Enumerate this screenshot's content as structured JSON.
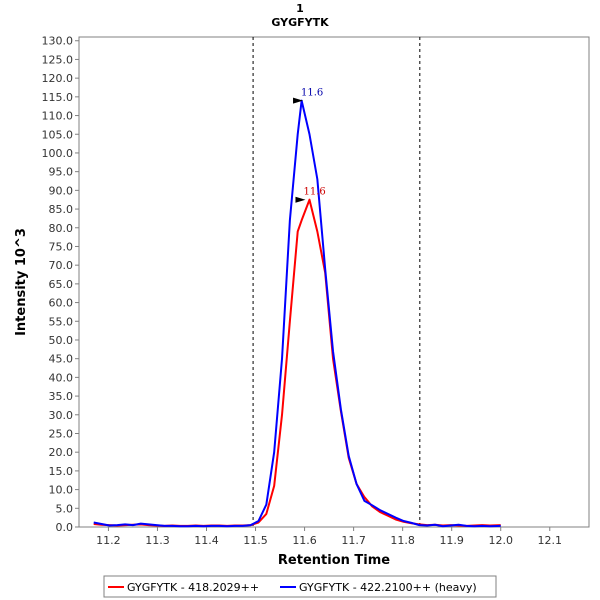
{
  "chart_data": {
    "type": "line",
    "title": "1",
    "subtitle": "GYGFYTK",
    "xlabel": "Retention Time",
    "ylabel": "Intensity 10^3",
    "xlim": [
      11.14,
      12.18
    ],
    "ylim": [
      0,
      131
    ],
    "x_ticks": [
      "11.2",
      "11.3",
      "11.4",
      "11.5",
      "11.6",
      "11.7",
      "11.8",
      "11.9",
      "12.0",
      "12.1"
    ],
    "y_ticks": [
      "0.0",
      "5.0",
      "10.0",
      "15.0",
      "20.0",
      "25.0",
      "30.0",
      "35.0",
      "40.0",
      "45.0",
      "50.0",
      "55.0",
      "60.0",
      "65.0",
      "70.0",
      "75.0",
      "80.0",
      "85.0",
      "90.0",
      "95.0",
      "100.0",
      "105.0",
      "110.0",
      "115.0",
      "120.0",
      "125.0",
      "130.0"
    ],
    "grid": false,
    "legend_position": "bottom",
    "boundaries": [
      11.495,
      11.835
    ],
    "series": [
      {
        "name": "GYGFYTK - 418.2029++",
        "color": "#ff0000",
        "x": [
          11.17,
          11.186,
          11.202,
          11.218,
          11.234,
          11.25,
          11.266,
          11.282,
          11.298,
          11.314,
          11.33,
          11.346,
          11.362,
          11.378,
          11.394,
          11.41,
          11.426,
          11.442,
          11.458,
          11.474,
          11.49,
          11.506,
          11.522,
          11.538,
          11.554,
          11.57,
          11.586,
          11.594,
          11.61,
          11.626,
          11.642,
          11.658,
          11.674,
          11.69,
          11.706,
          11.722,
          11.738,
          11.754,
          11.77,
          11.786,
          11.802,
          11.818,
          11.834,
          11.85,
          11.866,
          11.882,
          11.898,
          11.914,
          11.93,
          11.946,
          11.962,
          11.978,
          12.0
        ],
        "values": [
          0.8,
          0.6,
          0.5,
          0.4,
          0.5,
          0.6,
          0.7,
          0.5,
          0.4,
          0.3,
          0.4,
          0.3,
          0.3,
          0.4,
          0.3,
          0.4,
          0.4,
          0.3,
          0.4,
          0.4,
          0.5,
          1.2,
          3.5,
          11,
          30,
          55,
          79,
          82,
          87.5,
          79,
          68,
          45,
          31,
          18.5,
          11.5,
          8,
          5.5,
          4,
          3,
          2,
          1.4,
          1,
          0.7,
          0.5,
          0.6,
          0.4,
          0.5,
          0.4,
          0.3,
          0.4,
          0.5,
          0.4,
          0.5
        ]
      },
      {
        "name": "GYGFYTK - 422.2100++ (heavy)",
        "color": "#0000ff",
        "x": [
          11.17,
          11.186,
          11.202,
          11.218,
          11.234,
          11.25,
          11.266,
          11.282,
          11.298,
          11.314,
          11.33,
          11.346,
          11.362,
          11.378,
          11.394,
          11.41,
          11.426,
          11.442,
          11.458,
          11.474,
          11.49,
          11.506,
          11.522,
          11.538,
          11.554,
          11.57,
          11.586,
          11.594,
          11.61,
          11.626,
          11.642,
          11.658,
          11.674,
          11.69,
          11.706,
          11.722,
          11.738,
          11.754,
          11.77,
          11.786,
          11.802,
          11.818,
          11.834,
          11.85,
          11.866,
          11.882,
          11.898,
          11.914,
          11.93,
          11.946,
          11.962,
          11.978,
          12.0
        ],
        "values": [
          1.2,
          0.8,
          0.4,
          0.5,
          0.7,
          0.5,
          0.9,
          0.7,
          0.5,
          0.3,
          0.3,
          0.2,
          0.2,
          0.3,
          0.2,
          0.3,
          0.3,
          0.2,
          0.3,
          0.3,
          0.5,
          1.6,
          6,
          20,
          45,
          82,
          105,
          114,
          105,
          93,
          69,
          47,
          31.5,
          19,
          11.5,
          7,
          5.8,
          4.5,
          3.5,
          2.5,
          1.6,
          1.1,
          0.5,
          0.4,
          0.6,
          0.2,
          0.4,
          0.6,
          0.3,
          0.2,
          0.3,
          0.2,
          0.3
        ]
      }
    ],
    "peak_labels": [
      {
        "text": "11.6",
        "x": 11.605,
        "y": 114,
        "color": "#0000aa"
      },
      {
        "text": "11.6",
        "x": 11.61,
        "y": 87.5,
        "color": "#cc0000"
      }
    ]
  }
}
